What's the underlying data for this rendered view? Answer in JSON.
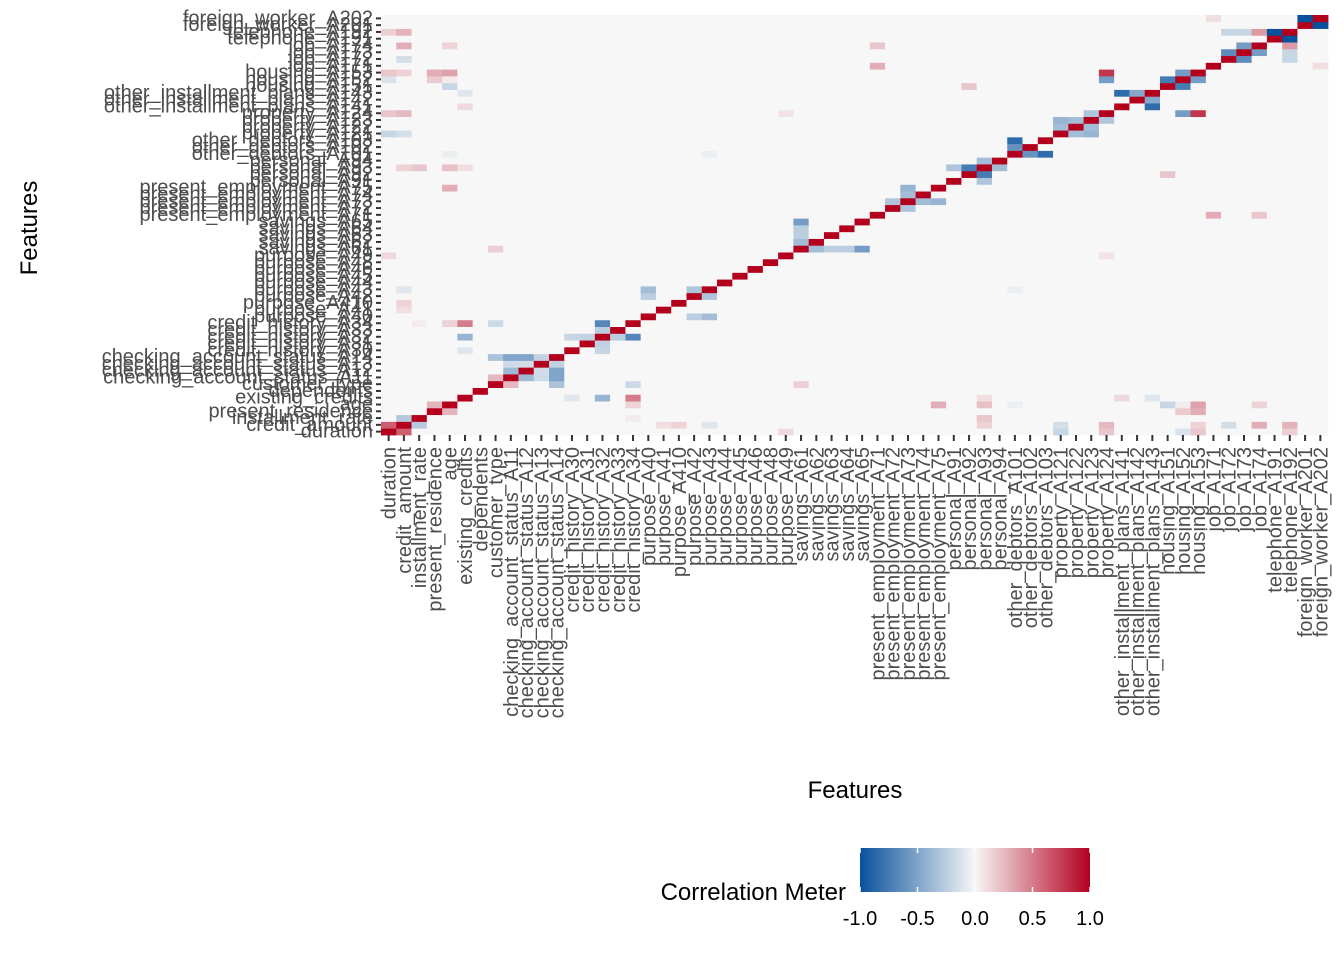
{
  "chart_data": {
    "type": "heatmap",
    "xlabel": "Features",
    "ylabel": "Features",
    "features": [
      "duration",
      "credit_amount",
      "installment_rate",
      "present_residence",
      "age",
      "existing_credits",
      "dependents",
      "customer_type",
      "checking_account_status_A11",
      "checking_account_status_A12",
      "checking_account_status_A13",
      "checking_account_status_A14",
      "credit_history_A30",
      "credit_history_A31",
      "credit_history_A32",
      "credit_history_A33",
      "credit_history_A34",
      "purpose_A40",
      "purpose_A41",
      "purpose_A410",
      "purpose_A42",
      "purpose_A43",
      "purpose_A44",
      "purpose_A45",
      "purpose_A46",
      "purpose_A48",
      "purpose_A49",
      "savings_A61",
      "savings_A62",
      "savings_A63",
      "savings_A64",
      "savings_A65",
      "present_employment_A71",
      "present_employment_A72",
      "present_employment_A73",
      "present_employment_A74",
      "present_employment_A75",
      "personal_A91",
      "personal_A92",
      "personal_A93",
      "personal_A94",
      "other_debtors_A101",
      "other_debtors_A102",
      "other_debtors_A103",
      "property_A121",
      "property_A122",
      "property_A123",
      "property_A124",
      "other_installment_plans_A141",
      "other_installment_plans_A142",
      "other_installment_plans_A143",
      "housing_A151",
      "housing_A152",
      "housing_A153",
      "job_A171",
      "job_A172",
      "job_A173",
      "job_A174",
      "telephone_A191",
      "telephone_A192",
      "foreign_worker_A201",
      "foreign_worker_A202"
    ],
    "strong_correlations": [
      {
        "a": "duration",
        "b": "credit_amount",
        "value": 0.62
      },
      {
        "a": "credit_amount",
        "b": "installment_rate",
        "value": -0.27
      },
      {
        "a": "present_residence",
        "b": "age",
        "value": 0.27
      },
      {
        "a": "age",
        "b": "housing_A153",
        "value": 0.35
      },
      {
        "a": "age",
        "b": "credit_history_A34",
        "value": 0.15
      },
      {
        "a": "existing_credits",
        "b": "credit_history_A34",
        "value": 0.5
      },
      {
        "a": "existing_credits",
        "b": "credit_history_A32",
        "value": -0.4
      },
      {
        "a": "checking_account_status_A11",
        "b": "checking_account_status_A12",
        "value": -0.37
      },
      {
        "a": "checking_account_status_A11",
        "b": "checking_account_status_A13",
        "value": -0.17
      },
      {
        "a": "checking_account_status_A11",
        "b": "checking_account_status_A14",
        "value": -0.5
      },
      {
        "a": "checking_account_status_A12",
        "b": "checking_account_status_A13",
        "value": -0.16
      },
      {
        "a": "checking_account_status_A12",
        "b": "checking_account_status_A14",
        "value": -0.5
      },
      {
        "a": "checking_account_status_A13",
        "b": "checking_account_status_A14",
        "value": -0.22
      },
      {
        "a": "credit_history_A32",
        "b": "credit_history_A34",
        "value": -0.68
      },
      {
        "a": "credit_history_A30",
        "b": "credit_history_A32",
        "value": -0.2
      },
      {
        "a": "credit_history_A31",
        "b": "credit_history_A32",
        "value": -0.22
      },
      {
        "a": "credit_history_A33",
        "b": "credit_history_A32",
        "value": -0.25
      },
      {
        "a": "purpose_A40",
        "b": "purpose_A43",
        "value": -0.35
      },
      {
        "a": "purpose_A40",
        "b": "purpose_A42",
        "value": -0.25
      },
      {
        "a": "purpose_A42",
        "b": "purpose_A43",
        "value": -0.3
      },
      {
        "a": "savings_A61",
        "b": "savings_A65",
        "value": -0.55
      },
      {
        "a": "savings_A61",
        "b": "savings_A62",
        "value": -0.35
      },
      {
        "a": "savings_A61",
        "b": "savings_A63",
        "value": -0.25
      },
      {
        "a": "savings_A61",
        "b": "savings_A64",
        "value": -0.25
      },
      {
        "a": "present_employment_A73",
        "b": "present_employment_A75",
        "value": -0.4
      },
      {
        "a": "present_employment_A73",
        "b": "present_employment_A74",
        "value": -0.35
      },
      {
        "a": "present_employment_A72",
        "b": "present_employment_A73",
        "value": -0.3
      },
      {
        "a": "personal_A92",
        "b": "personal_A93",
        "value": -0.74
      },
      {
        "a": "personal_A91",
        "b": "personal_A93",
        "value": -0.3
      },
      {
        "a": "personal_A93",
        "b": "personal_A94",
        "value": -0.35
      },
      {
        "a": "other_debtors_A101",
        "b": "other_debtors_A103",
        "value": -0.84
      },
      {
        "a": "other_debtors_A101",
        "b": "other_debtors_A102",
        "value": -0.6
      },
      {
        "a": "property_A121",
        "b": "property_A123",
        "value": -0.4
      },
      {
        "a": "property_A121",
        "b": "property_A122",
        "value": -0.35
      },
      {
        "a": "property_A122",
        "b": "property_A123",
        "value": -0.35
      },
      {
        "a": "property_A124",
        "b": "housing_A153",
        "value": 0.78
      },
      {
        "a": "property_A124",
        "b": "housing_A152",
        "value": -0.55
      },
      {
        "a": "property_A123",
        "b": "property_A124",
        "value": -0.3
      },
      {
        "a": "other_installment_plans_A141",
        "b": "other_installment_plans_A143",
        "value": -0.84
      },
      {
        "a": "other_installment_plans_A142",
        "b": "other_installment_plans_A143",
        "value": -0.48
      },
      {
        "a": "housing_A151",
        "b": "housing_A152",
        "value": -0.74
      },
      {
        "a": "housing_A152",
        "b": "housing_A153",
        "value": -0.55
      },
      {
        "a": "job_A172",
        "b": "job_A173",
        "value": -0.65
      },
      {
        "a": "job_A173",
        "b": "job_A174",
        "value": -0.55
      },
      {
        "a": "job_A174",
        "b": "telephone_A192",
        "value": 0.38
      },
      {
        "a": "job_A174",
        "b": "credit_amount",
        "value": 0.3
      },
      {
        "a": "telephone_A191",
        "b": "telephone_A192",
        "value": -1.0
      },
      {
        "a": "foreign_worker_A201",
        "b": "foreign_worker_A202",
        "value": -1.0
      },
      {
        "a": "credit_amount",
        "b": "telephone_A192",
        "value": 0.28
      },
      {
        "a": "duration",
        "b": "telephone_A192",
        "value": 0.16
      },
      {
        "a": "customer_type",
        "b": "checking_account_status_A14",
        "value": -0.32
      },
      {
        "a": "customer_type",
        "b": "checking_account_status_A11",
        "value": 0.26
      },
      {
        "a": "customer_type",
        "b": "credit_history_A34",
        "value": -0.18
      },
      {
        "a": "customer_type",
        "b": "savings_A61",
        "value": 0.16
      },
      {
        "a": "installment_rate",
        "b": "credit_history_A34",
        "value": 0.05
      },
      {
        "a": "existing_credits",
        "b": "credit_history_A30",
        "value": -0.1
      },
      {
        "a": "age",
        "b": "present_employment_A75",
        "value": 0.3
      },
      {
        "a": "age",
        "b": "personal_A93",
        "value": 0.22
      },
      {
        "a": "age",
        "b": "other_debtors_A101",
        "value": -0.05
      },
      {
        "a": "age",
        "b": "job_A174",
        "value": 0.15
      },
      {
        "a": "present_residence",
        "b": "housing_A152",
        "value": 0.18
      },
      {
        "a": "present_residence",
        "b": "housing_A153",
        "value": 0.3
      },
      {
        "a": "present_employment_A71",
        "b": "job_A171",
        "value": 0.3
      },
      {
        "a": "present_employment_A71",
        "b": "job_A174",
        "value": 0.2
      },
      {
        "a": "personal_A92",
        "b": "housing_A151",
        "value": 0.2
      },
      {
        "a": "personal_A93",
        "b": "existing_credits",
        "value": 0.1
      },
      {
        "a": "personal_A93",
        "b": "installment_rate",
        "value": 0.2
      },
      {
        "a": "personal_A93",
        "b": "credit_amount",
        "value": 0.15
      },
      {
        "a": "other_debtors_A101",
        "b": "purpose_A43",
        "value": -0.05
      },
      {
        "a": "job_A173",
        "b": "telephone_A192",
        "value": -0.2
      },
      {
        "a": "job_A172",
        "b": "telephone_A192",
        "value": -0.2
      },
      {
        "a": "job_A172",
        "b": "credit_amount",
        "value": -0.15
      },
      {
        "a": "job_A171",
        "b": "foreign_worker_A202",
        "value": 0.1
      },
      {
        "a": "purpose_A41",
        "b": "credit_amount",
        "value": 0.1
      },
      {
        "a": "purpose_A410",
        "b": "credit_amount",
        "value": 0.15
      },
      {
        "a": "purpose_A49",
        "b": "duration",
        "value": 0.12
      },
      {
        "a": "purpose_A49",
        "b": "property_A124",
        "value": 0.08
      },
      {
        "a": "purpose_A43",
        "b": "credit_amount",
        "value": -0.1
      },
      {
        "a": "property_A121",
        "b": "duration",
        "value": -0.2
      },
      {
        "a": "property_A121",
        "b": "credit_amount",
        "value": -0.15
      },
      {
        "a": "property_A124",
        "b": "duration",
        "value": 0.2
      },
      {
        "a": "property_A124",
        "b": "credit_amount",
        "value": 0.25
      },
      {
        "a": "housing_A152",
        "b": "duration",
        "value": -0.12
      },
      {
        "a": "housing_A153",
        "b": "duration",
        "value": 0.2
      },
      {
        "a": "housing_A153",
        "b": "credit_amount",
        "value": 0.15
      },
      {
        "a": "housing_A151",
        "b": "age",
        "value": -0.2
      },
      {
        "a": "housing_A152",
        "b": "age",
        "value": 0.05
      },
      {
        "a": "other_installment_plans_A141",
        "b": "existing_credits",
        "value": 0.12
      },
      {
        "a": "other_installment_plans_A143",
        "b": "existing_credits",
        "value": -0.1
      }
    ],
    "legend": {
      "title": "Correlation Meter",
      "ticks": [
        "-1.0",
        "-0.5",
        "0.0",
        "0.5",
        "1.0"
      ],
      "tick_values": [
        -1.0,
        -0.5,
        0.0,
        0.5,
        1.0
      ],
      "low_color": "#08519c",
      "mid_color": "#f7f7f7",
      "high_color": "#b2001d",
      "placement": "bottom"
    },
    "grid": false
  }
}
